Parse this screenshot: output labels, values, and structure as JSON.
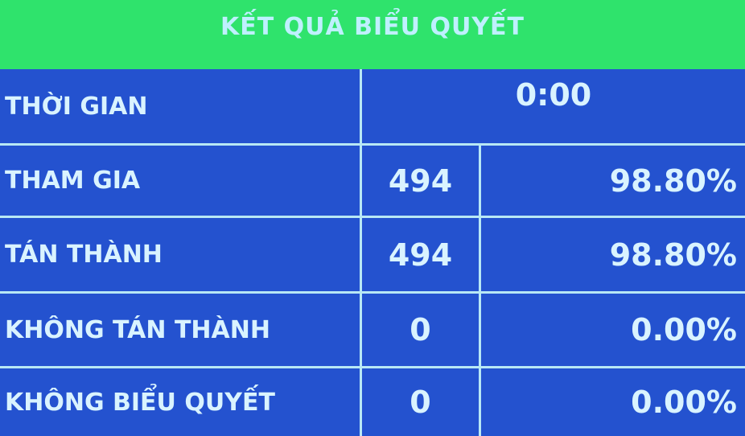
{
  "title": "KẾT QUẢ BIỂU QUYẾT",
  "time": {
    "label": "THỜI GIAN",
    "value": "0:00"
  },
  "rows": [
    {
      "label": "THAM GIA",
      "count": "494",
      "percent": "98.80%"
    },
    {
      "label": "TÁN THÀNH",
      "count": "494",
      "percent": "98.80%"
    },
    {
      "label": "KHÔNG TÁN THÀNH",
      "count": "0",
      "percent": "0.00%"
    },
    {
      "label": "KHÔNG BIỂU QUYẾT",
      "count": "0",
      "percent": "0.00%"
    }
  ],
  "colors": {
    "header": "#2fe36c",
    "body": "#2452cf",
    "text": "#d9f3ff"
  }
}
